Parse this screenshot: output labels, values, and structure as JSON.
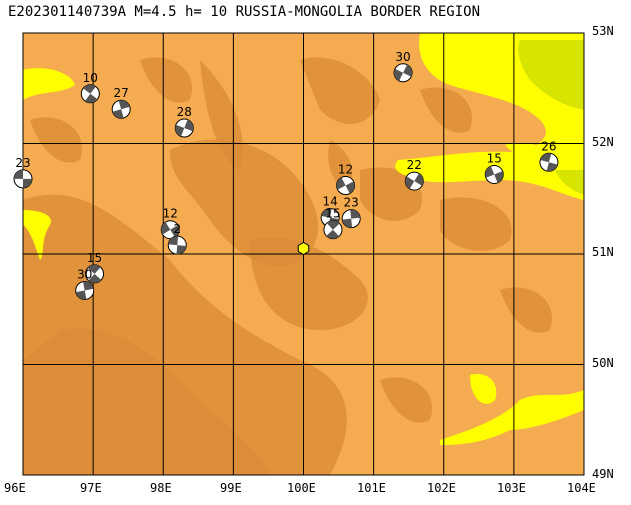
{
  "title": "E202301140739A M=4.5 h= 10 RUSSIA-MONGOLIA BORDER REGION",
  "map": {
    "lon_range": [
      96,
      104
    ],
    "lat_range": [
      49,
      53
    ],
    "lon_labels": [
      "96E",
      "97E",
      "98E",
      "99E",
      "100E",
      "101E",
      "102E",
      "103E",
      "104E"
    ],
    "lat_labels": [
      "53N",
      "52N",
      "51N",
      "50N",
      "49N"
    ],
    "colors": {
      "land": "#f5ab4f",
      "highland": "#d98b36",
      "lowland": "#ffff00",
      "lowland_green": "#d6e400",
      "grid": "#000000",
      "epicenter": "#ffff00",
      "mechanism": "#555555"
    },
    "epicenter": {
      "lon": 100.0,
      "lat": 51.05
    },
    "mechanisms": [
      {
        "label": "23",
        "lon": 96.0,
        "lat": 51.68
      },
      {
        "label": "10",
        "lon": 96.96,
        "lat": 52.45
      },
      {
        "label": "27",
        "lon": 97.4,
        "lat": 52.31
      },
      {
        "label": "28",
        "lon": 98.3,
        "lat": 52.14
      },
      {
        "label": "12",
        "lon": 98.1,
        "lat": 51.22
      },
      {
        "label": "2",
        "lon": 98.2,
        "lat": 51.08
      },
      {
        "label": "15",
        "lon": 97.02,
        "lat": 50.82
      },
      {
        "label": "30",
        "lon": 96.88,
        "lat": 50.67
      },
      {
        "label": "30",
        "lon": 101.42,
        "lat": 52.64
      },
      {
        "label": "12",
        "lon": 100.6,
        "lat": 51.62
      },
      {
        "label": "14",
        "lon": 100.38,
        "lat": 51.33
      },
      {
        "label": "15",
        "lon": 100.42,
        "lat": 51.22
      },
      {
        "label": "23",
        "lon": 100.68,
        "lat": 51.32
      },
      {
        "label": "22",
        "lon": 101.58,
        "lat": 51.66
      },
      {
        "label": "15",
        "lon": 102.72,
        "lat": 51.72
      },
      {
        "label": "26",
        "lon": 103.5,
        "lat": 51.83
      }
    ]
  }
}
